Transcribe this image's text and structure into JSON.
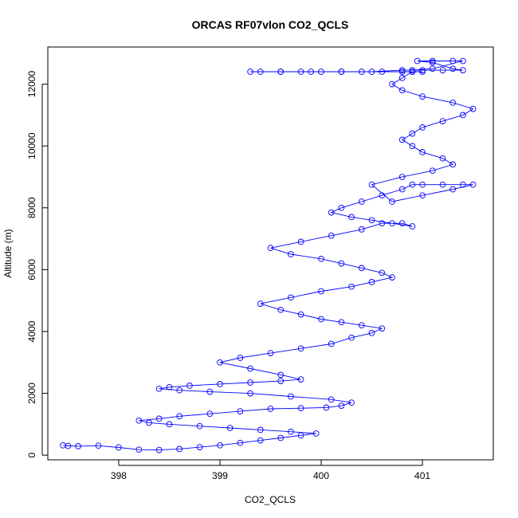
{
  "chart_data": {
    "type": "scatter",
    "title": "ORCAS RF07vlon CO2_QCLS",
    "xlabel": "CO2_QCLS",
    "ylabel": "Altitude (m)",
    "xlim": [
      397.3,
      401.7
    ],
    "ylim": [
      -150,
      13200
    ],
    "x_ticks": [
      398,
      399,
      400,
      401
    ],
    "y_ticks": [
      0,
      2000,
      4000,
      6000,
      8000,
      10000,
      12000
    ],
    "x_tick_labels": [
      "398",
      "399",
      "400",
      "401"
    ],
    "y_tick_labels": [
      "0",
      "2000",
      "4000",
      "6000",
      "8000",
      "10000",
      "12000"
    ],
    "series_color": "#0000ff",
    "marker": "open-circle",
    "connected": true,
    "grid": false,
    "legend": "none",
    "series": [
      {
        "x": [
          397.45,
          397.5,
          397.6,
          397.8,
          398.0,
          398.2,
          398.4,
          398.6,
          398.8,
          399.0,
          399.2,
          399.4,
          399.6,
          399.8,
          399.95,
          399.7,
          399.4,
          399.1,
          398.8,
          398.5,
          398.3,
          398.2,
          398.4,
          398.6,
          398.9,
          399.2,
          399.5,
          399.8,
          400.05,
          400.2,
          400.3,
          400.1,
          399.7,
          399.3,
          398.9,
          398.6,
          398.4,
          398.5,
          398.7,
          399.0,
          399.3,
          399.6,
          399.8,
          399.6,
          399.3,
          399.0,
          399.2,
          399.5,
          399.8,
          400.1,
          400.3,
          400.5,
          400.6,
          400.4,
          400.2,
          400.0,
          399.8,
          399.6,
          399.4,
          399.7,
          400.0,
          400.3,
          400.5,
          400.7,
          400.6,
          400.4,
          400.2,
          400.0,
          399.7,
          399.5,
          399.8,
          400.1,
          400.4,
          400.6,
          400.8,
          400.9,
          400.7,
          400.5,
          400.3,
          400.1,
          400.2,
          400.4,
          400.6,
          400.8,
          400.9,
          401.0,
          401.2,
          401.4,
          401.5,
          401.3,
          401.0,
          400.7,
          400.5,
          400.8,
          401.1,
          401.3,
          401.2,
          401.0,
          400.9,
          400.8,
          400.9,
          401.0,
          401.2,
          401.4,
          401.5,
          401.3,
          401.0,
          400.8,
          400.7,
          400.8,
          400.9,
          401.0,
          400.9,
          400.8,
          400.6,
          400.4,
          400.2,
          400.0,
          399.8,
          399.6,
          399.4,
          399.3,
          399.6,
          399.9,
          400.2,
          400.5,
          400.8,
          401.0,
          401.2,
          401.4,
          401.3,
          401.1,
          400.95,
          401.1,
          401.3,
          401.4,
          401.1,
          400.9
        ],
        "y": [
          320,
          300,
          290,
          310,
          250,
          180,
          170,
          200,
          260,
          320,
          400,
          480,
          560,
          640,
          700,
          760,
          820,
          880,
          940,
          1000,
          1050,
          1120,
          1180,
          1260,
          1340,
          1420,
          1500,
          1520,
          1540,
          1600,
          1700,
          1800,
          1900,
          2000,
          2050,
          2100,
          2150,
          2200,
          2250,
          2300,
          2350,
          2400,
          2450,
          2600,
          2800,
          3000,
          3150,
          3300,
          3450,
          3600,
          3800,
          3950,
          4100,
          4200,
          4300,
          4400,
          4550,
          4700,
          4900,
          5100,
          5300,
          5450,
          5600,
          5750,
          5900,
          6050,
          6200,
          6350,
          6500,
          6700,
          6900,
          7100,
          7300,
          7500,
          7500,
          7400,
          7500,
          7600,
          7700,
          7850,
          8000,
          8200,
          8400,
          8600,
          8750,
          8750,
          8750,
          8750,
          8750,
          8600,
          8400,
          8200,
          8750,
          9000,
          9200,
          9400,
          9600,
          9800,
          10000,
          10200,
          10400,
          10600,
          10800,
          11000,
          11200,
          11400,
          11600,
          11800,
          12000,
          12200,
          12400,
          12400,
          12400,
          12400,
          12400,
          12400,
          12400,
          12400,
          12400,
          12400,
          12400,
          12400,
          12400,
          12400,
          12400,
          12400,
          12450,
          12450,
          12450,
          12450,
          12500,
          12700,
          12750,
          12750,
          12750,
          12750,
          12500,
          12450
        ]
      }
    ]
  }
}
